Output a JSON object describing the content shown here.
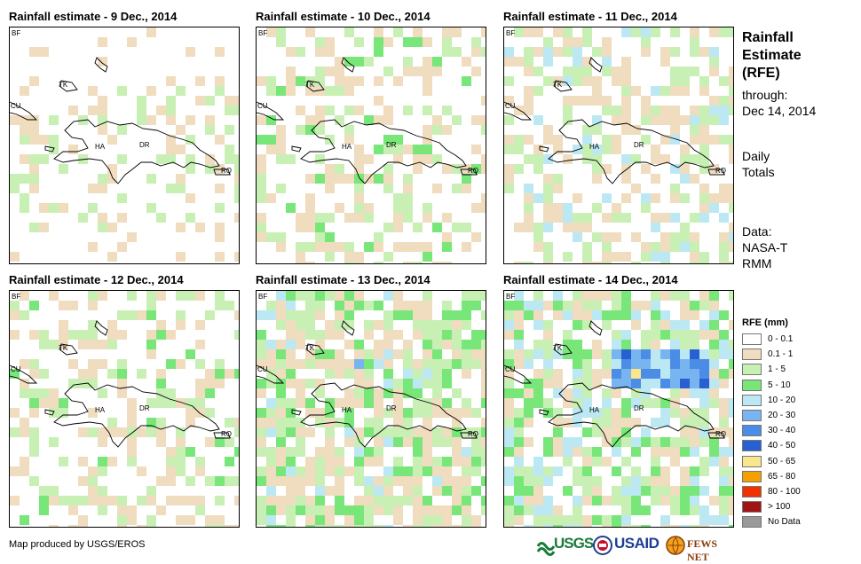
{
  "panels": [
    {
      "title": "Rainfall estimate - 9 Dec., 2014"
    },
    {
      "title": "Rainfall estimate - 10 Dec., 2014"
    },
    {
      "title": "Rainfall estimate - 11 Dec., 2014"
    },
    {
      "title": "Rainfall estimate - 12 Dec., 2014"
    },
    {
      "title": "Rainfall estimate - 13 Dec., 2014"
    },
    {
      "title": "Rainfall estimate - 14 Dec., 2014"
    }
  ],
  "map_labels": {
    "bf": "BF",
    "cu": "CU",
    "tk": "TK",
    "ha": "HA",
    "dr": "DR",
    "rq": "RQ"
  },
  "sidebar": {
    "title": "Rainfall Estimate (RFE)",
    "through_label": "through:",
    "through_date": "Dec 14, 2014",
    "period": "Daily Totals",
    "data_label": "Data:",
    "data_source": "NASA-TRMM"
  },
  "legend": {
    "title": "RFE (mm)",
    "items": [
      {
        "label": "0 - 0.1",
        "color": "#ffffff"
      },
      {
        "label": "0.1 - 1",
        "color": "#f0dcbe"
      },
      {
        "label": "1 - 5",
        "color": "#c8f0b4"
      },
      {
        "label": "5 - 10",
        "color": "#78e678"
      },
      {
        "label": "10 - 20",
        "color": "#bce8f4"
      },
      {
        "label": "20 - 30",
        "color": "#78b4f0"
      },
      {
        "label": "30 - 40",
        "color": "#4b8ce6"
      },
      {
        "label": "40 - 50",
        "color": "#2860d2"
      },
      {
        "label": "50 - 65",
        "color": "#fae68c"
      },
      {
        "label": "65 - 80",
        "color": "#f5a000"
      },
      {
        "label": "80 - 100",
        "color": "#f03200"
      },
      {
        "label": "> 100",
        "color": "#a01414"
      },
      {
        "label": "No Data",
        "color": "#999999"
      }
    ]
  },
  "footer": {
    "credit": "Map produced by USGS/EROS"
  },
  "logos": {
    "usgs": "USGS",
    "usaid": "USAID",
    "fewsnet": "FEWS NET"
  }
}
